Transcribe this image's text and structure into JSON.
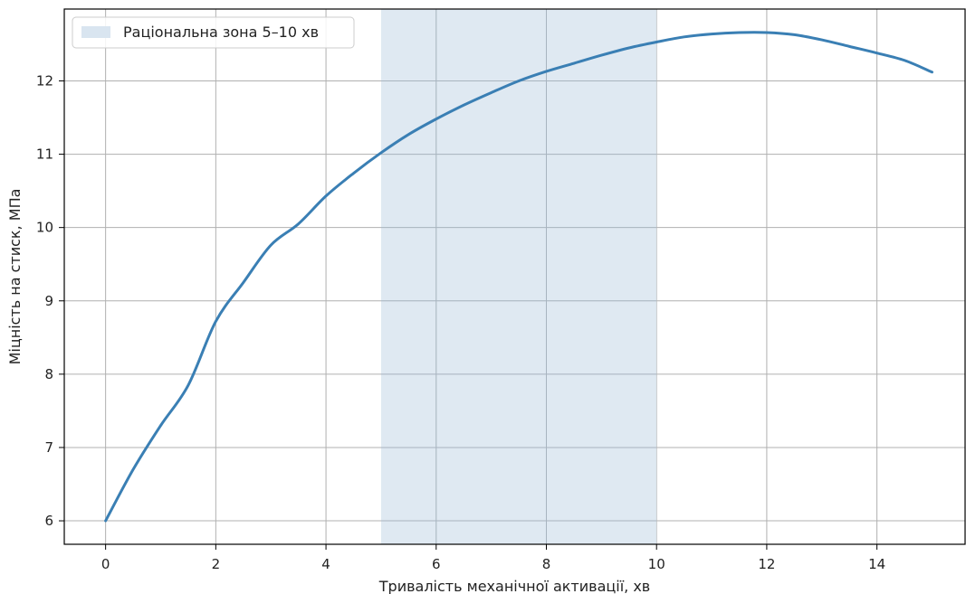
{
  "chart_data": {
    "type": "line",
    "xlabel": "Тривалість механічної активації, хв",
    "ylabel": "Міцність на стиск, МПа",
    "xlim": [
      -0.75,
      15.6
    ],
    "ylim": [
      5.68,
      12.98
    ],
    "x_ticks": [
      0,
      2,
      4,
      6,
      8,
      10,
      12,
      14
    ],
    "y_ticks": [
      6,
      7,
      8,
      9,
      10,
      11,
      12
    ],
    "grid": true,
    "legend_position": "top-left",
    "line_color": "#3a7fb4",
    "band_color": "#d9e5f0",
    "band": {
      "x_start": 5,
      "x_end": 10,
      "label": "Раціональна зона 5–10 хв"
    },
    "series": [
      {
        "x": [
          0,
          0.5,
          1,
          1.5,
          2,
          2.5,
          3,
          3.5,
          4,
          4.5,
          5,
          5.5,
          6,
          6.5,
          7,
          7.5,
          8,
          8.5,
          9,
          9.5,
          10,
          10.5,
          11,
          11.5,
          12,
          12.5,
          13,
          13.5,
          14,
          14.5,
          15
        ],
        "values": [
          6.0,
          6.7,
          7.3,
          7.85,
          8.72,
          9.25,
          9.76,
          10.05,
          10.43,
          10.74,
          11.02,
          11.27,
          11.48,
          11.67,
          11.84,
          12.0,
          12.13,
          12.24,
          12.35,
          12.45,
          12.53,
          12.6,
          12.64,
          12.66,
          12.66,
          12.63,
          12.56,
          12.47,
          12.38,
          12.28,
          12.12
        ]
      }
    ]
  }
}
